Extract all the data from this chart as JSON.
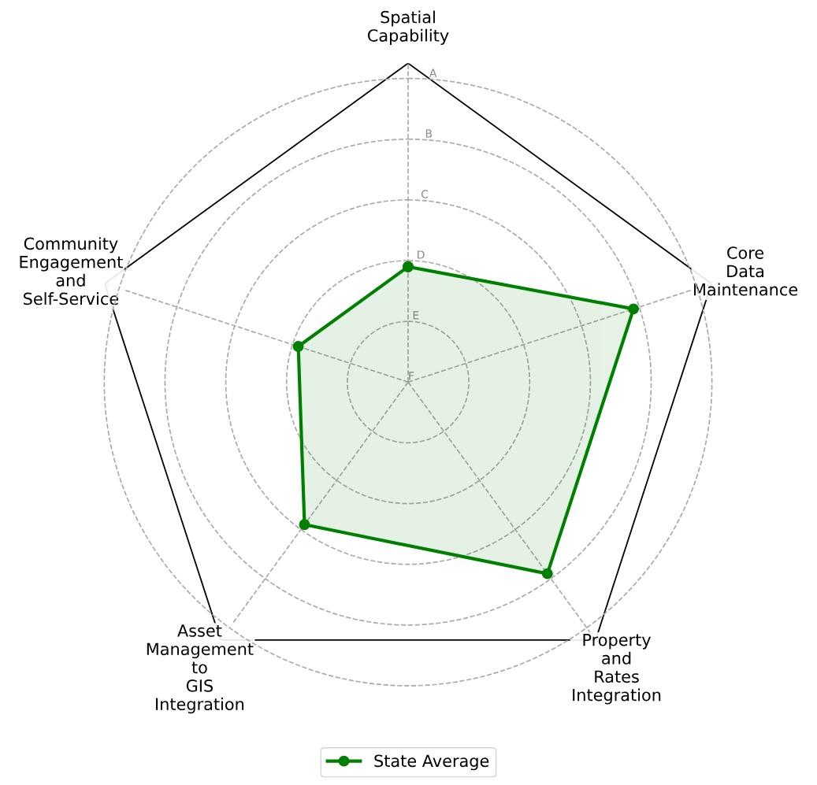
{
  "chart_data": {
    "type": "radar",
    "categories": [
      "Spatial\nCapability",
      "Core\nData\nMaintenance",
      "Property\nand\nRates\nIntegration",
      "Asset\nManagement\nto\nGIS\nIntegration",
      "Community\nEngagement\nand\nSelf-Service"
    ],
    "series": [
      {
        "name": "State Average",
        "color": "#008000",
        "values": [
          1.9,
          3.9,
          3.9,
          2.9,
          1.9
        ]
      }
    ],
    "ylim": [
      0,
      5.25
    ],
    "yticks": [
      {
        "value": 0,
        "label": "F"
      },
      {
        "value": 1,
        "label": "E"
      },
      {
        "value": 2,
        "label": "D"
      },
      {
        "value": 3,
        "label": "C"
      },
      {
        "value": 4,
        "label": "B"
      },
      {
        "value": 5,
        "label": "A"
      }
    ],
    "grid": true,
    "legend": "bottom",
    "marker": "circle",
    "line_style": "solid"
  }
}
